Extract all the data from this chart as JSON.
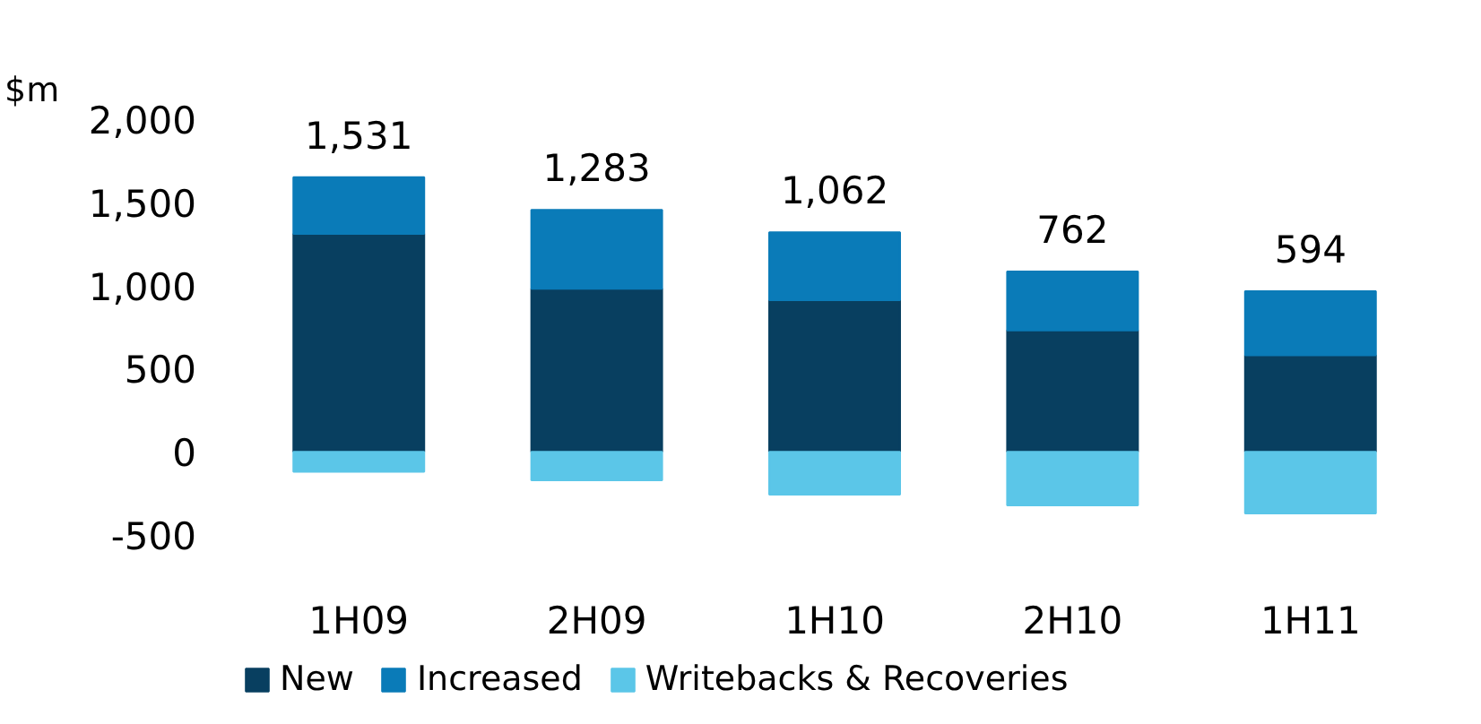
{
  "chart_data": {
    "type": "bar",
    "stacked": true,
    "ylabel": "$m",
    "categories": [
      "1H09",
      "2H09",
      "1H10",
      "2H10",
      "1H11"
    ],
    "series": [
      {
        "name": "New",
        "color": "#083f60",
        "values": [
          1310,
          980,
          912,
          730,
          580
        ]
      },
      {
        "name": "Increased",
        "color": "#0a7bb8",
        "values": [
          341,
          475,
          408,
          354,
          385
        ]
      },
      {
        "name": "Writebacks & Recoveries",
        "color": "#5bc6e8",
        "values": [
          -120,
          -172,
          -258,
          -322,
          -371
        ]
      }
    ],
    "totals": [
      "1,531",
      "1,283",
      "1,062",
      "762",
      "594"
    ],
    "ylim": [
      -500,
      2000
    ],
    "yticks": [
      {
        "value": -500,
        "label": "-500"
      },
      0,
      500,
      {
        "value": 1000,
        "label": "1,000"
      },
      {
        "value": 1500,
        "label": "1,500"
      },
      {
        "value": 2000,
        "label": "2,000"
      }
    ],
    "grid": false,
    "legend": "bottom"
  }
}
